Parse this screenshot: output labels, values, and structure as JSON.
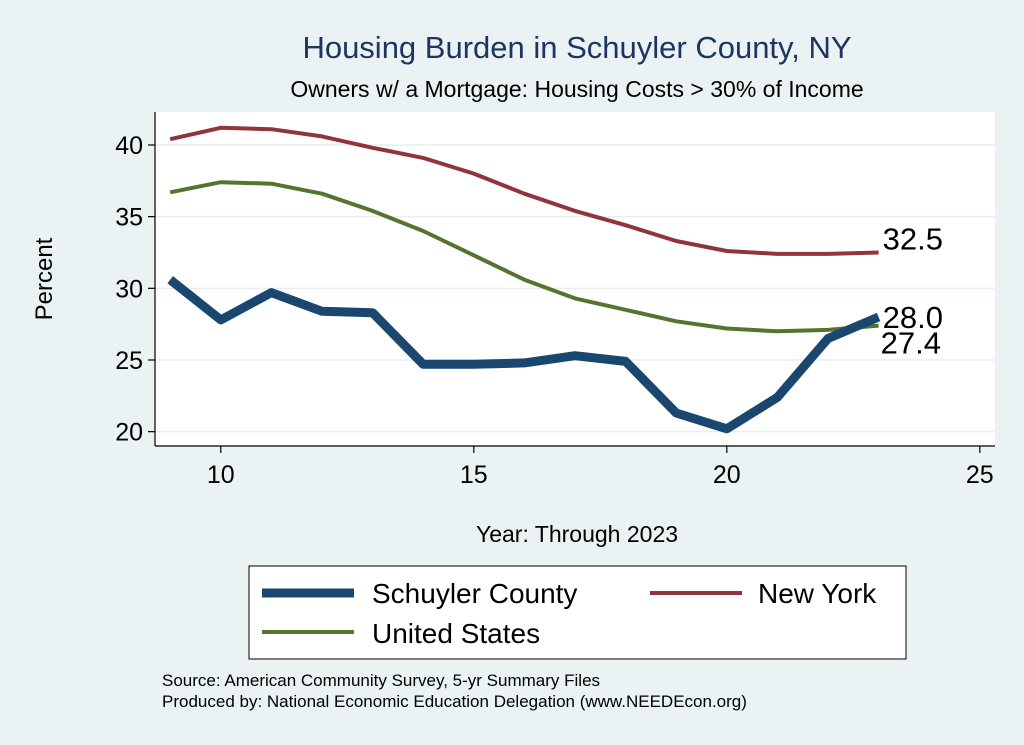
{
  "chart_data": {
    "type": "line",
    "title": "Housing Burden in Schuyler County, NY",
    "subtitle": "Owners w/ a Mortgage: Housing Costs > 30% of Income",
    "xlabel": "Year: Through 2023",
    "ylabel": "Percent",
    "xlim": [
      8.7,
      25.3
    ],
    "ylim": [
      19.0,
      42.3
    ],
    "xticks": [
      10,
      15,
      20,
      25
    ],
    "yticks": [
      20,
      25,
      30,
      35,
      40
    ],
    "grid": true,
    "legend_position": "bottom",
    "x": [
      9,
      10,
      11,
      12,
      13,
      14,
      15,
      16,
      17,
      18,
      19,
      20,
      21,
      22,
      23
    ],
    "series": [
      {
        "name": "Schuyler County",
        "color": "#1a476f",
        "values": [
          30.6,
          27.8,
          29.7,
          28.4,
          28.3,
          24.7,
          24.7,
          24.8,
          25.3,
          24.9,
          21.3,
          20.2,
          22.4,
          26.5,
          28.0
        ],
        "end_label": "28.0"
      },
      {
        "name": "New York",
        "color": "#90353b",
        "values": [
          40.4,
          41.2,
          41.1,
          40.6,
          39.8,
          39.1,
          38.0,
          36.6,
          35.4,
          34.4,
          33.3,
          32.6,
          32.4,
          32.4,
          32.5
        ],
        "end_label": "32.5"
      },
      {
        "name": "United States",
        "color": "#55752f",
        "values": [
          36.7,
          37.4,
          37.3,
          36.6,
          35.4,
          34.0,
          32.3,
          30.6,
          29.3,
          28.5,
          27.7,
          27.2,
          27.0,
          27.1,
          27.4
        ],
        "end_label": "27.4"
      }
    ]
  },
  "source": {
    "line1": "Source: American Community Survey, 5-yr Summary Files",
    "line2": "Produced by: National Economic Education Delegation (www.NEEDEcon.org)"
  }
}
